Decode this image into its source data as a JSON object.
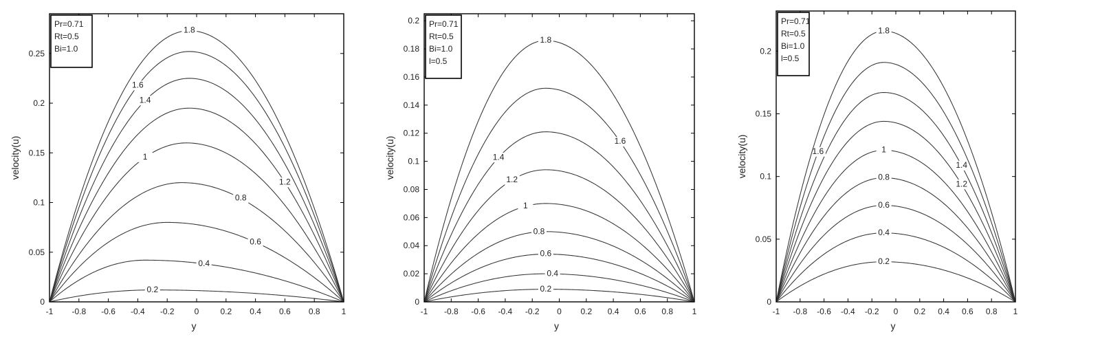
{
  "chart_data": [
    {
      "type": "line",
      "xlabel": "y",
      "ylabel": "velocity(u)",
      "xlim": [
        -1,
        1
      ],
      "ylim": [
        0,
        0.29
      ],
      "x_ticks": [
        -1,
        -0.8,
        -0.6,
        -0.4,
        -0.2,
        0,
        0.2,
        0.4,
        0.6,
        0.8,
        1
      ],
      "x_tick_labels": [
        "-1",
        "-0.8",
        "-0.6",
        "-0.4",
        "-0.2",
        "0",
        "0.2",
        "0.4",
        "0.6",
        "0.8",
        "1"
      ],
      "y_ticks": [
        0,
        0.05,
        0.1,
        0.15,
        0.2,
        0.25
      ],
      "y_tick_labels": [
        "0",
        "0.05",
        "0.1",
        "0.15",
        "0.2",
        "0.25"
      ],
      "legend": [
        "Pr=0.71",
        "Rt=0.5",
        "Bi=1.0"
      ],
      "legend_position": "top-left",
      "grid": false,
      "series": [
        {
          "name": "0.2",
          "peak_y": -0.3,
          "peak_u": 0.012
        },
        {
          "name": "0.4",
          "peak_y": -0.35,
          "peak_u": 0.042
        },
        {
          "name": "0.6",
          "peak_y": -0.2,
          "peak_u": 0.08
        },
        {
          "name": "0.8",
          "peak_y": -0.1,
          "peak_u": 0.12
        },
        {
          "name": "1",
          "peak_y": -0.07,
          "peak_u": 0.16
        },
        {
          "name": "1.2",
          "peak_y": -0.05,
          "peak_u": 0.195
        },
        {
          "name": "1.4",
          "peak_y": -0.05,
          "peak_u": 0.225
        },
        {
          "name": "1.6",
          "peak_y": -0.05,
          "peak_u": 0.252
        },
        {
          "name": "1.8",
          "peak_y": -0.05,
          "peak_u": 0.273
        }
      ]
    },
    {
      "type": "line",
      "xlabel": "y",
      "ylabel": "velocity(u)",
      "xlim": [
        -1,
        1
      ],
      "ylim": [
        0,
        0.205
      ],
      "x_ticks": [
        -1,
        -0.8,
        -0.6,
        -0.4,
        -0.2,
        0,
        0.2,
        0.4,
        0.6,
        0.8,
        1
      ],
      "x_tick_labels": [
        "-1",
        "-0.8",
        "-0.6",
        "-0.4",
        "-0.2",
        "0",
        "0.2",
        "0.4",
        "0.6",
        "0.8",
        "1"
      ],
      "y_ticks": [
        0,
        0.02,
        0.04,
        0.06,
        0.08,
        0.1,
        0.12,
        0.14,
        0.16,
        0.18,
        0.2
      ],
      "y_tick_labels": [
        "0",
        "0.02",
        "0.04",
        "0.06",
        "0.08",
        "0.1",
        "0.12",
        "0.14",
        "0.16",
        "0.18",
        "0.2"
      ],
      "legend": [
        "Pr=0.71",
        "Rt=0.5",
        "Bi=1.0",
        "l=0.5"
      ],
      "legend_position": "top-left",
      "grid": false,
      "series": [
        {
          "name": "0.2",
          "peak_y": -0.1,
          "peak_u": 0.009
        },
        {
          "name": "0.4",
          "peak_y": -0.1,
          "peak_u": 0.02
        },
        {
          "name": "0.6",
          "peak_y": -0.1,
          "peak_u": 0.034
        },
        {
          "name": "0.8",
          "peak_y": -0.1,
          "peak_u": 0.05
        },
        {
          "name": "1",
          "peak_y": -0.1,
          "peak_u": 0.07
        },
        {
          "name": "1.2",
          "peak_y": -0.1,
          "peak_u": 0.094
        },
        {
          "name": "1.4",
          "peak_y": -0.1,
          "peak_u": 0.121
        },
        {
          "name": "1.6",
          "peak_y": -0.1,
          "peak_u": 0.152
        },
        {
          "name": "1.8",
          "peak_y": -0.1,
          "peak_u": 0.186
        }
      ]
    },
    {
      "type": "line",
      "xlabel": "y",
      "ylabel": "velocity(u)",
      "xlim": [
        -1,
        1
      ],
      "ylim": [
        0,
        0.232
      ],
      "x_ticks": [
        -1,
        -0.8,
        -0.6,
        -0.4,
        -0.2,
        0,
        0.2,
        0.4,
        0.6,
        0.8,
        1
      ],
      "x_tick_labels": [
        "-1",
        "-0.8",
        "-0.6",
        "-0.4",
        "-0.2",
        "0",
        "0.2",
        "0.4",
        "0.6",
        "0.8",
        "1"
      ],
      "y_ticks": [
        0,
        0.05,
        0.1,
        0.15,
        0.2
      ],
      "y_tick_labels": [
        "0",
        "0.05",
        "0.1",
        "0.15",
        "0.2"
      ],
      "legend": [
        "Pr=0.71",
        "Rt=0.5",
        "Bi=1.0",
        "l=0.5"
      ],
      "legend_position": "top-left",
      "grid": false,
      "series": [
        {
          "name": "0.2",
          "peak_y": -0.1,
          "peak_u": 0.032
        },
        {
          "name": "0.4",
          "peak_y": -0.1,
          "peak_u": 0.055
        },
        {
          "name": "0.6",
          "peak_y": -0.1,
          "peak_u": 0.077
        },
        {
          "name": "0.8",
          "peak_y": -0.1,
          "peak_u": 0.099
        },
        {
          "name": "1",
          "peak_y": -0.1,
          "peak_u": 0.121
        },
        {
          "name": "1.2",
          "peak_y": -0.1,
          "peak_u": 0.144
        },
        {
          "name": "1.4",
          "peak_y": -0.1,
          "peak_u": 0.167
        },
        {
          "name": "1.6",
          "peak_y": -0.1,
          "peak_u": 0.191
        },
        {
          "name": "1.8",
          "peak_y": -0.1,
          "peak_u": 0.216
        }
      ]
    }
  ]
}
